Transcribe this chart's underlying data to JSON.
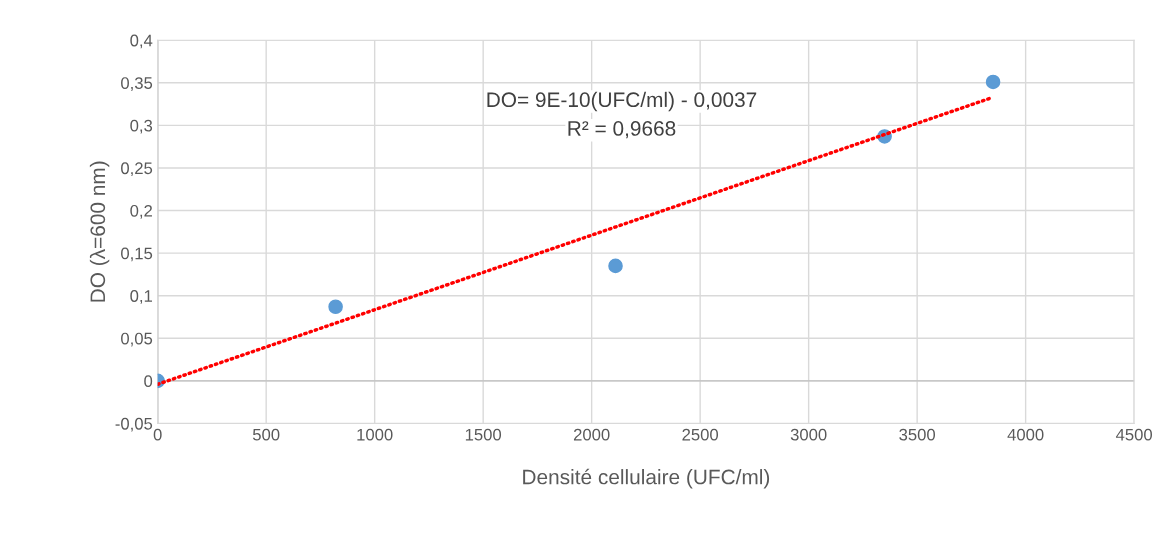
{
  "chart_data": {
    "type": "scatter",
    "xlabel": "Densité cellulaire (UFC/ml)",
    "ylabel": "DO (λ=600 nm)",
    "x": [
      0,
      820,
      2110,
      3350,
      3850
    ],
    "series": [
      {
        "color": "#5b9bd5",
        "marker": "circle",
        "values": [
          0,
          0.087,
          0.135,
          0.287,
          0.351
        ]
      },
      {
        "type": "line",
        "color": "#ff0000",
        "line_style": "dotted",
        "marker": "none",
        "x": [
          0,
          3850
        ],
        "values": [
          -0.004,
          0.333
        ]
      }
    ],
    "xlim": [
      0,
      4500
    ],
    "ylim": [
      -0.05,
      0.4
    ],
    "xticks": [
      0,
      500,
      1000,
      1500,
      2000,
      2500,
      3000,
      3500,
      4000,
      4500
    ],
    "yticks": [
      {
        "value": -0.05,
        "label": "-0,05"
      },
      0,
      {
        "value": 0.05,
        "label": "0,05"
      },
      {
        "value": 0.1,
        "label": "0,1"
      },
      {
        "value": 0.15,
        "label": "0,15"
      },
      {
        "value": 0.2,
        "label": "0,2"
      },
      {
        "value": 0.25,
        "label": "0,25"
      },
      {
        "value": 0.3,
        "label": "0,3"
      },
      {
        "value": 0.35,
        "label": "0,35"
      },
      {
        "value": 0.4,
        "label": "0,4"
      }
    ],
    "grid": true,
    "annotations": [
      "DO= 9E-10(UFC/ml) - 0,0037",
      "R² = 0,9668"
    ]
  }
}
